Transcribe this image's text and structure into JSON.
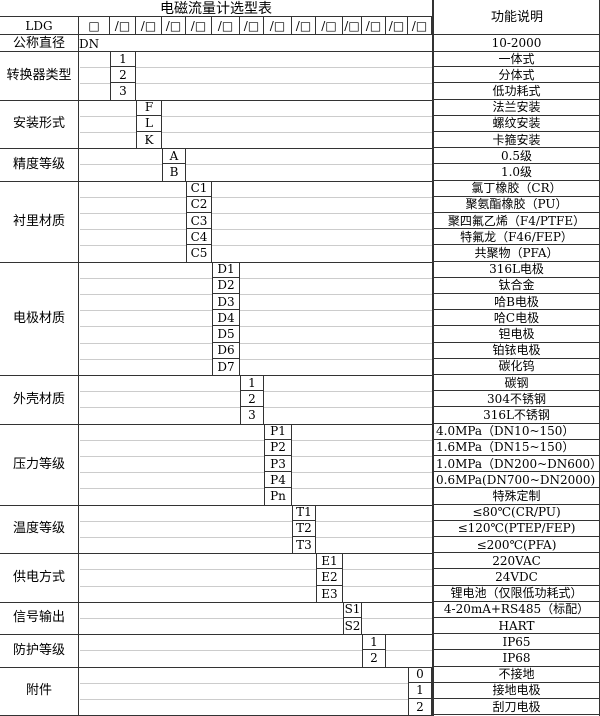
{
  "title": "电磁流量计选型表",
  "func_header": "功能说明",
  "model_prefix": "LDG",
  "first_box": "□",
  "slot_box": "/□",
  "slot_count": 13,
  "nominal": {
    "label": "公称直径",
    "code": "DN",
    "desc": "10-2000"
  },
  "groups": [
    {
      "label": "转换器类型",
      "col": 1,
      "items": [
        {
          "code": "1",
          "desc": "一体式"
        },
        {
          "code": "2",
          "desc": "分体式"
        },
        {
          "code": "3",
          "desc": "低功耗式"
        }
      ]
    },
    {
      "label": "安装形式",
      "col": 2,
      "items": [
        {
          "code": "F",
          "desc": "法兰安装"
        },
        {
          "code": "L",
          "desc": "螺纹安装"
        },
        {
          "code": "K",
          "desc": "卡箍安装"
        }
      ]
    },
    {
      "label": "精度等级",
      "col": 3,
      "items": [
        {
          "code": "A",
          "desc": "0.5级"
        },
        {
          "code": "B",
          "desc": "1.0级"
        }
      ]
    },
    {
      "label": "衬里材质",
      "col": 4,
      "items": [
        {
          "code": "C1",
          "desc": "氯丁橡胶（CR）"
        },
        {
          "code": "C2",
          "desc": "聚氨酯橡胶（PU）"
        },
        {
          "code": "C3",
          "desc": "聚四氟乙烯（F4/PTFE）"
        },
        {
          "code": "C4",
          "desc": "特氟龙（F46/FEP）"
        },
        {
          "code": "C5",
          "desc": "共聚物（PFA）"
        }
      ]
    },
    {
      "label": "电极材质",
      "col": 5,
      "items": [
        {
          "code": "D1",
          "desc": "316L电极"
        },
        {
          "code": "D2",
          "desc": "钛合金"
        },
        {
          "code": "D3",
          "desc": "哈B电极"
        },
        {
          "code": "D4",
          "desc": "哈C电极"
        },
        {
          "code": "D5",
          "desc": "钽电极"
        },
        {
          "code": "D6",
          "desc": "铂铱电极"
        },
        {
          "code": "D7",
          "desc": "碳化钨"
        }
      ]
    },
    {
      "label": "外壳材质",
      "col": 6,
      "items": [
        {
          "code": "1",
          "desc": "碳钢"
        },
        {
          "code": "2",
          "desc": "304不锈钢"
        },
        {
          "code": "3",
          "desc": "316L不锈钢"
        }
      ]
    },
    {
      "label": "压力等级",
      "col": 7,
      "items": [
        {
          "code": "P1",
          "desc": "4.0MPa（DN10~150）",
          "left": true
        },
        {
          "code": "P2",
          "desc": "1.6MPa（DN15~150）",
          "left": true
        },
        {
          "code": "P3",
          "desc": "1.0MPa（DN200~DN600）",
          "left": true
        },
        {
          "code": "P4",
          "desc": "0.6MPa(DN700~DN2000)",
          "left": true
        },
        {
          "code": "Pn",
          "desc": "特殊定制"
        }
      ]
    },
    {
      "label": "温度等级",
      "col": 8,
      "items": [
        {
          "code": "T1",
          "desc": "≤80℃(CR/PU)"
        },
        {
          "code": "T2",
          "desc": "≤120℃(PTEP/FEP)"
        },
        {
          "code": "T3",
          "desc": "≤200℃(PFA)"
        }
      ]
    },
    {
      "label": "供电方式",
      "col": 9,
      "items": [
        {
          "code": "E1",
          "desc": "220VAC"
        },
        {
          "code": "E2",
          "desc": "24VDC"
        },
        {
          "code": "E3",
          "desc": "锂电池（仅限低功耗式）"
        }
      ]
    },
    {
      "label": "信号输出",
      "col": 10,
      "items": [
        {
          "code": "S1",
          "desc": "4-20mA+RS485（标配）"
        },
        {
          "code": "S2",
          "desc": "HART"
        }
      ]
    },
    {
      "label": "防护等级",
      "col": 11,
      "items": [
        {
          "code": "1",
          "desc": "IP65"
        },
        {
          "code": "2",
          "desc": "IP68"
        }
      ]
    },
    {
      "label": "附件",
      "col": 13,
      "items": [
        {
          "code": "0",
          "desc": "不接地"
        },
        {
          "code": "1",
          "desc": "接地电极"
        },
        {
          "code": "2",
          "desc": "刮刀电极"
        }
      ]
    }
  ]
}
